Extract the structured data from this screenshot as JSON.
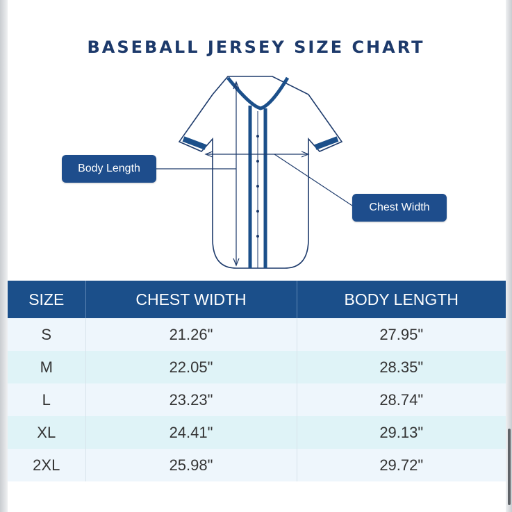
{
  "title": "BASEBALL JERSEY SIZE CHART",
  "callouts": {
    "body_length": "Body Length",
    "chest_width": "Chest Width"
  },
  "colors": {
    "navy": "#1b4f8a",
    "title": "#1d3a6b",
    "row_light": "#eef6fc",
    "row_alt": "#dff3f7"
  },
  "table": {
    "headers": [
      "SIZE",
      "CHEST WIDTH",
      "BODY LENGTH"
    ],
    "rows": [
      {
        "size": "S",
        "chest": "21.26\"",
        "length": "27.95\""
      },
      {
        "size": "M",
        "chest": "22.05\"",
        "length": "28.35\""
      },
      {
        "size": "L",
        "chest": "23.23\"",
        "length": "28.74\""
      },
      {
        "size": "XL",
        "chest": "24.41\"",
        "length": "29.13\""
      },
      {
        "size": "2XL",
        "chest": "25.98\"",
        "length": "29.72\""
      }
    ]
  }
}
